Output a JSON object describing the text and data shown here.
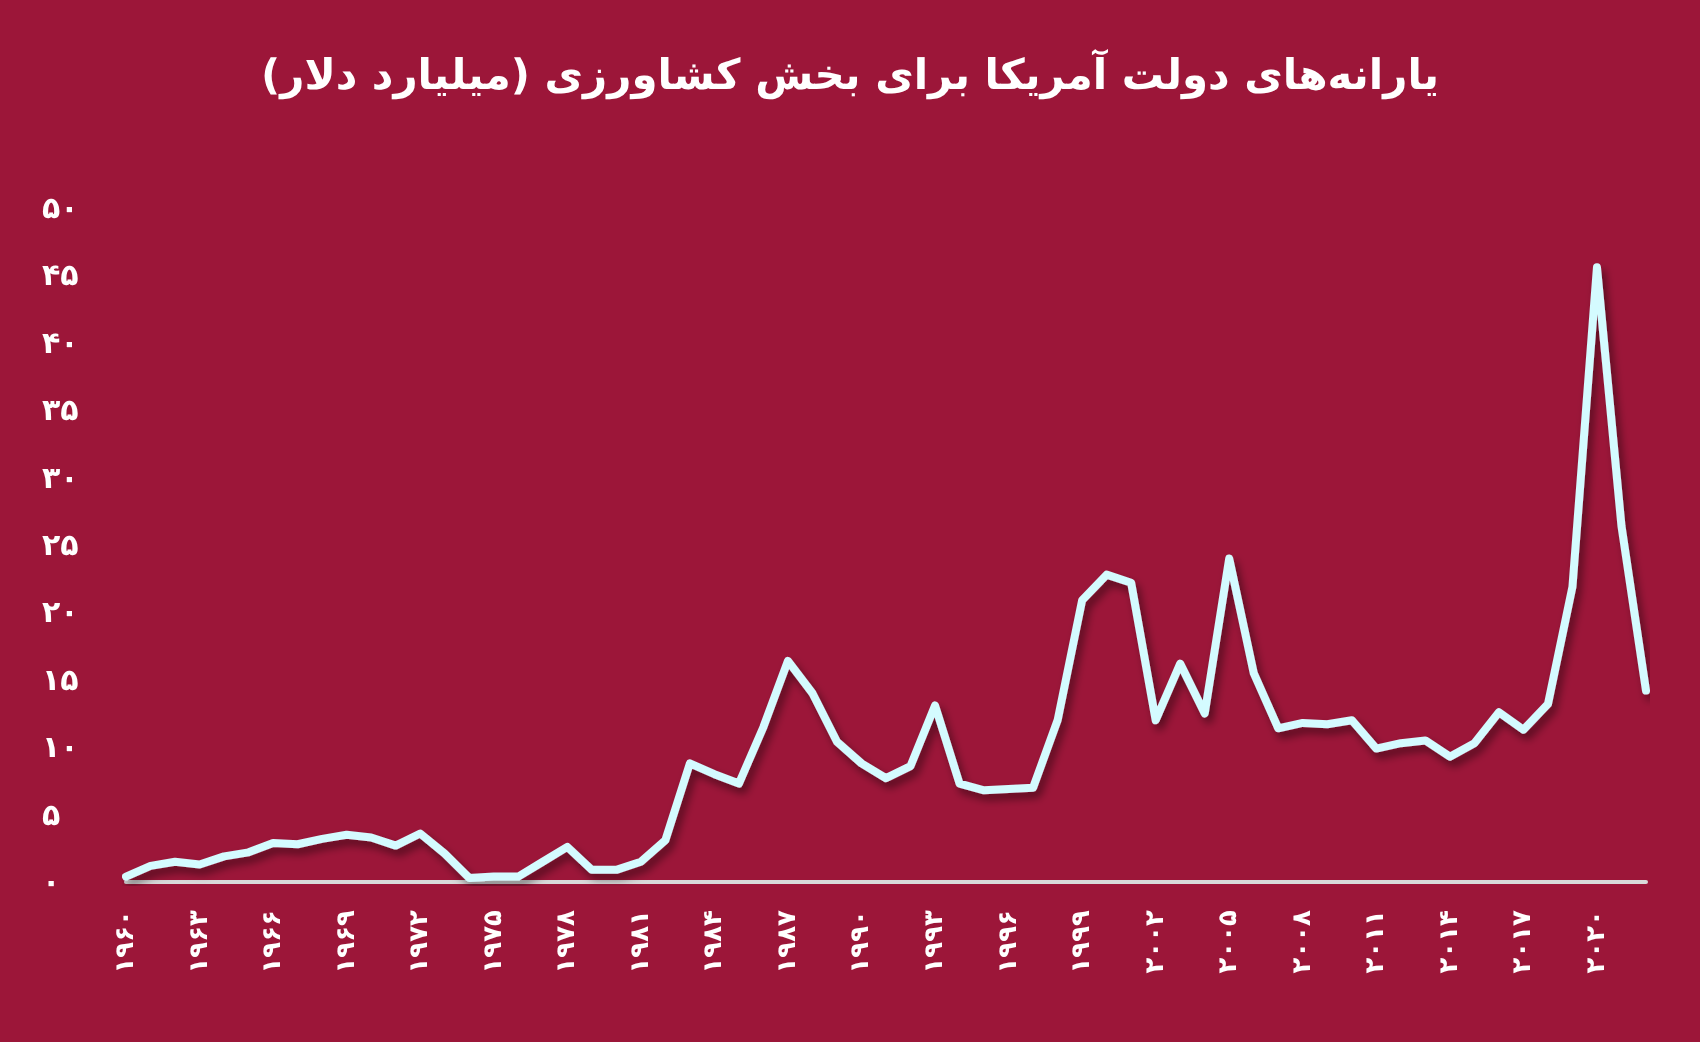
{
  "chart_data": {
    "type": "line",
    "title": "یارانه‌های دولت آمریکا برای بخش کشاورزی (میلیارد دلار)",
    "categories": [
      "۱۹۶۰",
      null,
      null,
      "۱۹۶۳",
      null,
      null,
      "۱۹۶۶",
      null,
      null,
      "۱۹۶۹",
      null,
      null,
      "۱۹۷۲",
      null,
      null,
      "۱۹۷۵",
      null,
      null,
      "۱۹۷۸",
      null,
      null,
      "۱۹۸۱",
      null,
      null,
      "۱۹۸۴",
      null,
      null,
      "۱۹۸۷",
      null,
      null,
      "۱۹۹۰",
      null,
      null,
      "۱۹۹۳",
      null,
      null,
      "۱۹۹۶",
      null,
      null,
      "۱۹۹۹",
      null,
      null,
      "۲۰۰۲",
      null,
      null,
      "۲۰۰۵",
      null,
      null,
      "۲۰۰۸",
      null,
      null,
      "۲۰۱۱",
      null,
      null,
      "۲۰۱۴",
      null,
      null,
      "۲۰۱۷",
      null,
      null,
      "۲۰۲۰",
      null,
      null
    ],
    "series": [
      {
        "color": "#d4fbff",
        "values": [
          0.4,
          1.2,
          1.5,
          1.3,
          1.9,
          2.2,
          2.9,
          2.8,
          3.2,
          3.5,
          3.3,
          2.7,
          3.6,
          2.1,
          0.3,
          0.4,
          0.4,
          1.5,
          2.6,
          0.9,
          0.9,
          1.5,
          3.1,
          8.8,
          8.0,
          7.3,
          11.5,
          16.4,
          14.0,
          10.4,
          8.8,
          7.7,
          8.6,
          13.1,
          7.3,
          6.8,
          6.9,
          7.0,
          12.0,
          20.9,
          22.8,
          22.2,
          12.0,
          16.2,
          12.5,
          24.0,
          15.5,
          11.4,
          11.8,
          11.7,
          12.0,
          9.9,
          10.3,
          10.5,
          9.3,
          10.3,
          12.6,
          11.3,
          13.2,
          21.9,
          45.6,
          26.4,
          14.2
        ]
      }
    ],
    "ylim": [
      0,
      50
    ],
    "yticks": [
      {
        "value": 0,
        "label": "۰"
      },
      {
        "value": 5,
        "label": "۵"
      },
      {
        "value": 10,
        "label": "۱۰"
      },
      {
        "value": 15,
        "label": "۱۵"
      },
      {
        "value": 20,
        "label": "۲۰"
      },
      {
        "value": 25,
        "label": "۲۵"
      },
      {
        "value": 30,
        "label": "۳۰"
      },
      {
        "value": 35,
        "label": "۳۵"
      },
      {
        "value": 40,
        "label": "۴۰"
      },
      {
        "value": 45,
        "label": "۴۵"
      },
      {
        "value": 50,
        "label": "۵۰"
      }
    ],
    "grid": false,
    "marker": "none",
    "line_style": "solid"
  }
}
